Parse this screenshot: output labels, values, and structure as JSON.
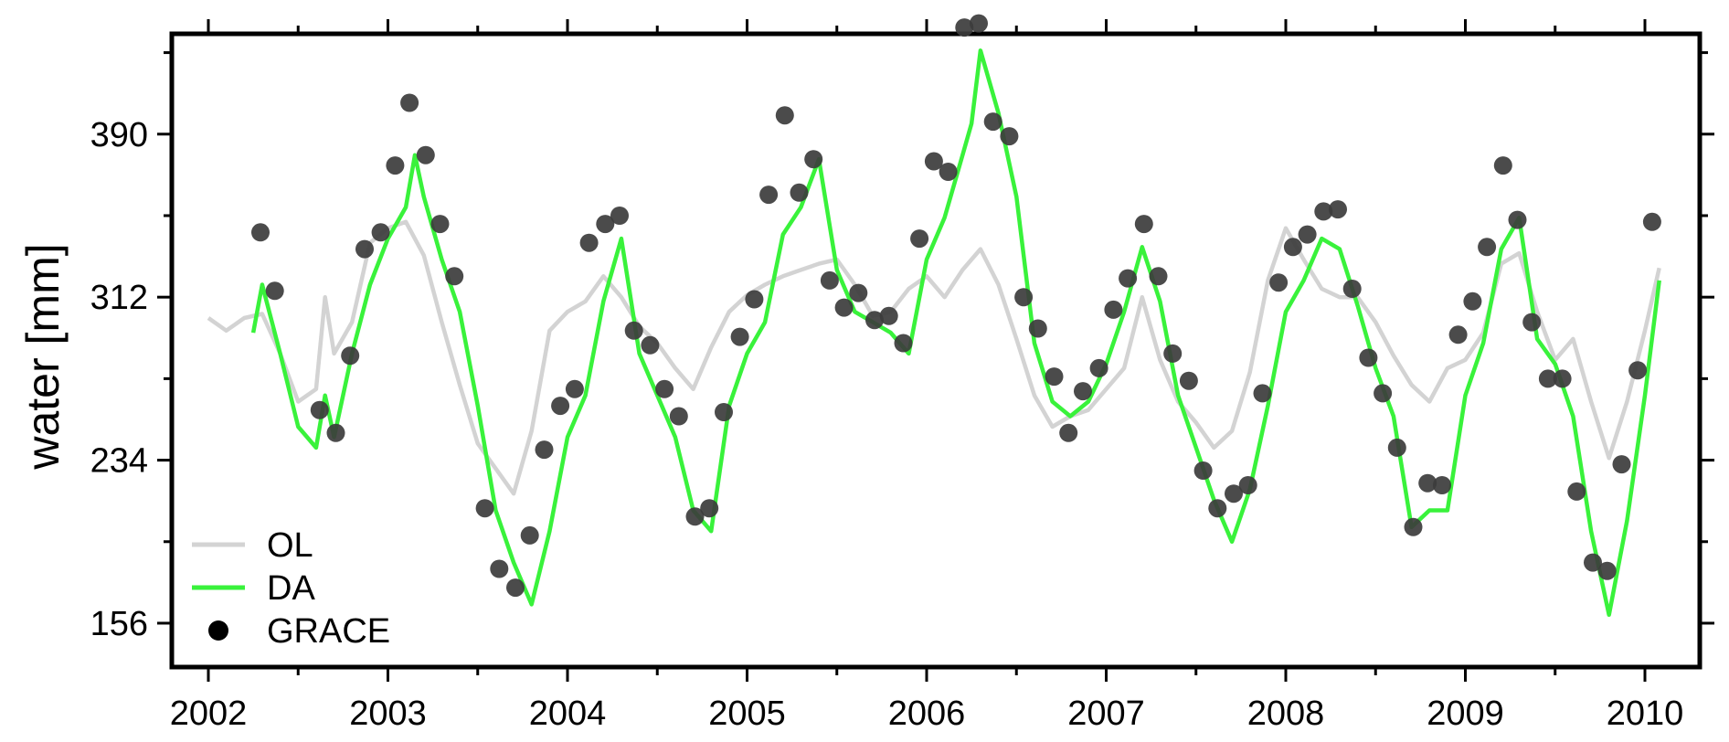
{
  "chart_data": {
    "type": "line",
    "title": "",
    "xlabel": "",
    "ylabel": "water [mm]",
    "xlim": [
      2002.0,
      2010.23
    ],
    "ylim": [
      135,
      438
    ],
    "x_ticks": [
      2002,
      2003,
      2004,
      2005,
      2006,
      2007,
      2008,
      2009,
      2010
    ],
    "x_tick_labels": [
      "2002",
      "2003",
      "2004",
      "2005",
      "2006",
      "2007",
      "2008",
      "2009",
      "2010"
    ],
    "y_ticks": [
      156,
      234,
      312,
      390
    ],
    "y_tick_labels": [
      "156",
      "234",
      "312",
      "390"
    ],
    "grid": false,
    "legend_position": "bottom-left",
    "colors": {
      "OL": "#d3d3d3",
      "DA": "#39f23b",
      "GRACE": "#3c3c3c"
    },
    "series": [
      {
        "name": "OL",
        "type": "line",
        "x": [
          2002.0,
          2002.1,
          2002.2,
          2002.3,
          2002.4,
          2002.5,
          2002.6,
          2002.65,
          2002.7,
          2002.8,
          2002.9,
          2003.0,
          2003.1,
          2003.2,
          2003.3,
          2003.4,
          2003.5,
          2003.6,
          2003.7,
          2003.8,
          2003.9,
          2004.0,
          2004.1,
          2004.2,
          2004.3,
          2004.4,
          2004.5,
          2004.6,
          2004.7,
          2004.8,
          2004.9,
          2005.0,
          2005.1,
          2005.2,
          2005.3,
          2005.4,
          2005.5,
          2005.6,
          2005.7,
          2005.8,
          2005.9,
          2006.0,
          2006.1,
          2006.2,
          2006.3,
          2006.4,
          2006.5,
          2006.6,
          2006.7,
          2006.8,
          2006.9,
          2007.0,
          2007.1,
          2007.2,
          2007.3,
          2007.4,
          2007.5,
          2007.6,
          2007.7,
          2007.8,
          2007.9,
          2008.0,
          2008.1,
          2008.2,
          2008.3,
          2008.4,
          2008.5,
          2008.6,
          2008.7,
          2008.8,
          2008.9,
          2009.0,
          2009.1,
          2009.2,
          2009.3,
          2009.4,
          2009.5,
          2009.6,
          2009.7,
          2009.8,
          2009.9,
          2010.0,
          2010.08
        ],
        "y": [
          302,
          296,
          302,
          304,
          285,
          262,
          268,
          312,
          285,
          300,
          338,
          345,
          348,
          332,
          300,
          270,
          242,
          230,
          218,
          248,
          296,
          305,
          310,
          322,
          312,
          298,
          290,
          278,
          268,
          288,
          305,
          313,
          318,
          322,
          325,
          328,
          330,
          318,
          303,
          305,
          316,
          322,
          312,
          325,
          335,
          318,
          292,
          265,
          250,
          255,
          258,
          268,
          278,
          312,
          282,
          262,
          252,
          240,
          248,
          276,
          320,
          345,
          330,
          316,
          312,
          312,
          300,
          284,
          270,
          262,
          278,
          282,
          295,
          328,
          333,
          305,
          282,
          292,
          262,
          235,
          262,
          296,
          326
        ]
      },
      {
        "name": "DA",
        "type": "line",
        "x": [
          2002.25,
          2002.3,
          2002.4,
          2002.5,
          2002.6,
          2002.65,
          2002.7,
          2002.8,
          2002.9,
          2003.0,
          2003.1,
          2003.15,
          2003.2,
          2003.3,
          2003.4,
          2003.5,
          2003.6,
          2003.7,
          2003.8,
          2003.9,
          2004.0,
          2004.1,
          2004.2,
          2004.3,
          2004.4,
          2004.5,
          2004.6,
          2004.7,
          2004.8,
          2004.9,
          2005.0,
          2005.1,
          2005.2,
          2005.3,
          2005.4,
          2005.5,
          2005.6,
          2005.7,
          2005.8,
          2005.9,
          2006.0,
          2006.1,
          2006.2,
          2006.25,
          2006.3,
          2006.4,
          2006.5,
          2006.6,
          2006.7,
          2006.8,
          2006.9,
          2007.0,
          2007.1,
          2007.2,
          2007.3,
          2007.4,
          2007.5,
          2007.6,
          2007.7,
          2007.8,
          2007.9,
          2008.0,
          2008.1,
          2008.2,
          2008.3,
          2008.4,
          2008.5,
          2008.6,
          2008.7,
          2008.8,
          2008.9,
          2009.0,
          2009.1,
          2009.2,
          2009.3,
          2009.4,
          2009.5,
          2009.6,
          2009.7,
          2009.8,
          2009.9,
          2010.0,
          2010.08
        ],
        "y": [
          295,
          318,
          285,
          250,
          240,
          265,
          245,
          285,
          318,
          340,
          355,
          380,
          360,
          330,
          305,
          260,
          210,
          185,
          165,
          200,
          245,
          265,
          310,
          340,
          285,
          265,
          245,
          210,
          200,
          260,
          285,
          300,
          342,
          355,
          378,
          325,
          305,
          300,
          295,
          285,
          330,
          350,
          380,
          395,
          430,
          400,
          360,
          290,
          262,
          255,
          262,
          280,
          305,
          336,
          310,
          265,
          240,
          215,
          195,
          220,
          260,
          305,
          320,
          340,
          335,
          308,
          278,
          255,
          202,
          210,
          210,
          265,
          290,
          335,
          350,
          292,
          280,
          255,
          200,
          160,
          205,
          265,
          320
        ]
      },
      {
        "name": "GRACE",
        "type": "scatter",
        "x": [
          2002.29,
          2002.37,
          2002.62,
          2002.71,
          2002.79,
          2002.87,
          2002.96,
          2003.04,
          2003.12,
          2003.21,
          2003.29,
          2003.37,
          2003.54,
          2003.62,
          2003.71,
          2003.79,
          2003.87,
          2003.96,
          2004.04,
          2004.12,
          2004.21,
          2004.29,
          2004.37,
          2004.46,
          2004.54,
          2004.62,
          2004.71,
          2004.79,
          2004.87,
          2004.96,
          2005.04,
          2005.12,
          2005.21,
          2005.29,
          2005.37,
          2005.46,
          2005.54,
          2005.62,
          2005.71,
          2005.79,
          2005.87,
          2005.96,
          2006.04,
          2006.12,
          2006.21,
          2006.29,
          2006.37,
          2006.46,
          2006.54,
          2006.62,
          2006.71,
          2006.79,
          2006.87,
          2006.96,
          2007.04,
          2007.12,
          2007.21,
          2007.29,
          2007.37,
          2007.46,
          2007.54,
          2007.62,
          2007.71,
          2007.79,
          2007.87,
          2007.96,
          2008.04,
          2008.12,
          2008.21,
          2008.29,
          2008.37,
          2008.46,
          2008.54,
          2008.62,
          2008.71,
          2008.79,
          2008.87,
          2008.96,
          2009.04,
          2009.12,
          2009.21,
          2009.29,
          2009.37,
          2009.46,
          2009.54,
          2009.62,
          2009.71,
          2009.79,
          2009.87,
          2009.96,
          2010.04
        ],
        "y": [
          343,
          315,
          258,
          247,
          284,
          335,
          343,
          375,
          405,
          380,
          347,
          322,
          211,
          182,
          173,
          198,
          239,
          260,
          268,
          338,
          347,
          351,
          296,
          289,
          268,
          255,
          207,
          211,
          257,
          293,
          311,
          361,
          399,
          362,
          378,
          320,
          307,
          314,
          301,
          303,
          290,
          340,
          377,
          372,
          441,
          443,
          396,
          389,
          312,
          297,
          274,
          247,
          267,
          278,
          306,
          321,
          347,
          322,
          285,
          272,
          229,
          211,
          218,
          222,
          266,
          319,
          336,
          342,
          353,
          354,
          316,
          283,
          266,
          240,
          202,
          223,
          222,
          294,
          310,
          336,
          375,
          349,
          300,
          273,
          273,
          219,
          185,
          181,
          232,
          277,
          348
        ]
      }
    ]
  }
}
